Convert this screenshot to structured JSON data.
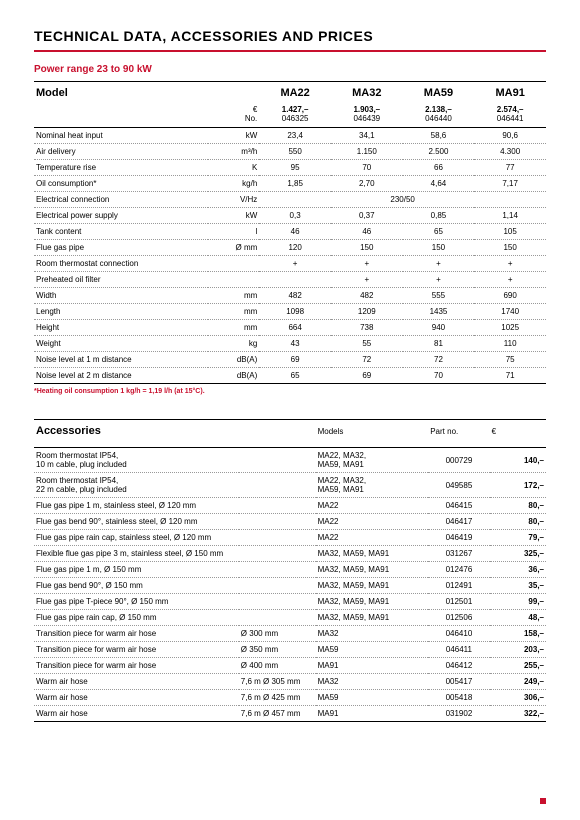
{
  "page": {
    "title": "TECHNICAL DATA, ACCESSORIES AND PRICES",
    "subtitle": "Power range 23 to 90 kW",
    "footnote": "*Heating oil consumption 1 kg/h = 1,19 l/h (at 15°C).",
    "colors": {
      "accent": "#c8102e",
      "bg": "#ffffff",
      "text": "#000000",
      "dotted": "#999999"
    }
  },
  "tech": {
    "model_label": "Model",
    "models": [
      "MA22",
      "MA32",
      "MA59",
      "MA91"
    ],
    "price_currency": "€",
    "price_no_label": "No.",
    "prices": [
      "1.427,–",
      "1.903,–",
      "2.138,–",
      "2.574,–"
    ],
    "partnos": [
      "046325",
      "046439",
      "046440",
      "046441"
    ],
    "rows": [
      {
        "label": "Nominal heat input",
        "unit": "kW",
        "vals": [
          "23,4",
          "34,1",
          "58,6",
          "90,6"
        ]
      },
      {
        "label": "Air delivery",
        "unit": "m³/h",
        "vals": [
          "550",
          "1.150",
          "2.500",
          "4.300"
        ]
      },
      {
        "label": "Temperature rise",
        "unit": "K",
        "vals": [
          "95",
          "70",
          "66",
          "77"
        ]
      },
      {
        "label": "Oil consumption*",
        "unit": "kg/h",
        "vals": [
          "1,85",
          "2,70",
          "4,64",
          "7,17"
        ]
      },
      {
        "label": "Electrical connection",
        "unit": "V/Hz",
        "span": "230/50"
      },
      {
        "label": "Electrical power supply",
        "unit": "kW",
        "vals": [
          "0,3",
          "0,37",
          "0,85",
          "1,14"
        ]
      },
      {
        "label": "Tank content",
        "unit": "l",
        "vals": [
          "46",
          "46",
          "65",
          "105"
        ]
      },
      {
        "label": "Flue gas pipe",
        "unit": "Ø mm",
        "vals": [
          "120",
          "150",
          "150",
          "150"
        ]
      },
      {
        "label": "Room thermostat connection",
        "unit": "",
        "vals": [
          "+",
          "+",
          "+",
          "+"
        ]
      },
      {
        "label": "Preheated oil filter",
        "unit": "",
        "vals": [
          "",
          "+",
          "+",
          "+"
        ]
      },
      {
        "label": "Width",
        "unit": "mm",
        "vals": [
          "482",
          "482",
          "555",
          "690"
        ]
      },
      {
        "label": "Length",
        "unit": "mm",
        "vals": [
          "1098",
          "1209",
          "1435",
          "1740"
        ]
      },
      {
        "label": "Height",
        "unit": "mm",
        "vals": [
          "664",
          "738",
          "940",
          "1025"
        ]
      },
      {
        "label": "Weight",
        "unit": "kg",
        "vals": [
          "43",
          "55",
          "81",
          "110"
        ]
      },
      {
        "label": "Noise level at 1 m distance",
        "unit": "dB(A)",
        "vals": [
          "69",
          "72",
          "72",
          "75"
        ]
      },
      {
        "label": "Noise level at 2 m distance",
        "unit": "dB(A)",
        "vals": [
          "65",
          "69",
          "70",
          "71"
        ]
      }
    ]
  },
  "acc": {
    "title": "Accessories",
    "col_models": "Models",
    "col_part": "Part no.",
    "col_price": "€",
    "rows": [
      {
        "desc": "Room thermostat IP54,\n10 m cable, plug included",
        "spec": "",
        "models": "MA22, MA32,\nMA59, MA91",
        "part": "000729",
        "price": "140,–"
      },
      {
        "desc": "Room thermostat IP54,\n22 m cable, plug included",
        "spec": "",
        "models": "MA22, MA32,\nMA59, MA91",
        "part": "049585",
        "price": "172,–"
      },
      {
        "desc": "Flue gas pipe 1 m, stainless steel, Ø 120 mm",
        "spec": "",
        "models": "MA22",
        "part": "046415",
        "price": "80,–"
      },
      {
        "desc": "Flue gas bend 90°, stainless steel, Ø 120 mm",
        "spec": "",
        "models": "MA22",
        "part": "046417",
        "price": "80,–"
      },
      {
        "desc": "Flue gas pipe rain cap, stainless steel, Ø 120 mm",
        "spec": "",
        "models": "MA22",
        "part": "046419",
        "price": "79,–"
      },
      {
        "desc": "Flexible flue gas pipe 3 m, stainless steel, Ø 150 mm",
        "spec": "",
        "models": "MA32, MA59, MA91",
        "part": "031267",
        "price": "325,–"
      },
      {
        "desc": "Flue gas pipe 1 m, Ø 150 mm",
        "spec": "",
        "models": "MA32, MA59, MA91",
        "part": "012476",
        "price": "36,–"
      },
      {
        "desc": "Flue gas bend 90°, Ø 150 mm",
        "spec": "",
        "models": "MA32, MA59, MA91",
        "part": "012491",
        "price": "35,–"
      },
      {
        "desc": "Flue gas pipe T-piece 90°, Ø 150 mm",
        "spec": "",
        "models": "MA32, MA59, MA91",
        "part": "012501",
        "price": "99,–"
      },
      {
        "desc": "Flue gas pipe rain cap, Ø 150 mm",
        "spec": "",
        "models": "MA32, MA59, MA91",
        "part": "012506",
        "price": "48,–"
      },
      {
        "desc": "Transition piece for warm air hose",
        "spec": "Ø 300 mm",
        "models": "MA32",
        "part": "046410",
        "price": "158,–"
      },
      {
        "desc": "Transition piece for warm air hose",
        "spec": "Ø 350 mm",
        "models": "MA59",
        "part": "046411",
        "price": "203,–"
      },
      {
        "desc": "Transition piece for warm air hose",
        "spec": "Ø 400 mm",
        "models": "MA91",
        "part": "046412",
        "price": "255,–"
      },
      {
        "desc": "Warm air hose",
        "spec": "7,6 m Ø 305 mm",
        "models": "MA32",
        "part": "005417",
        "price": "249,–"
      },
      {
        "desc": "Warm air hose",
        "spec": "7,6 m Ø 425 mm",
        "models": "MA59",
        "part": "005418",
        "price": "306,–"
      },
      {
        "desc": "Warm air hose",
        "spec": "7,6 m Ø 457 mm",
        "models": "MA91",
        "part": "031902",
        "price": "322,–"
      }
    ]
  }
}
